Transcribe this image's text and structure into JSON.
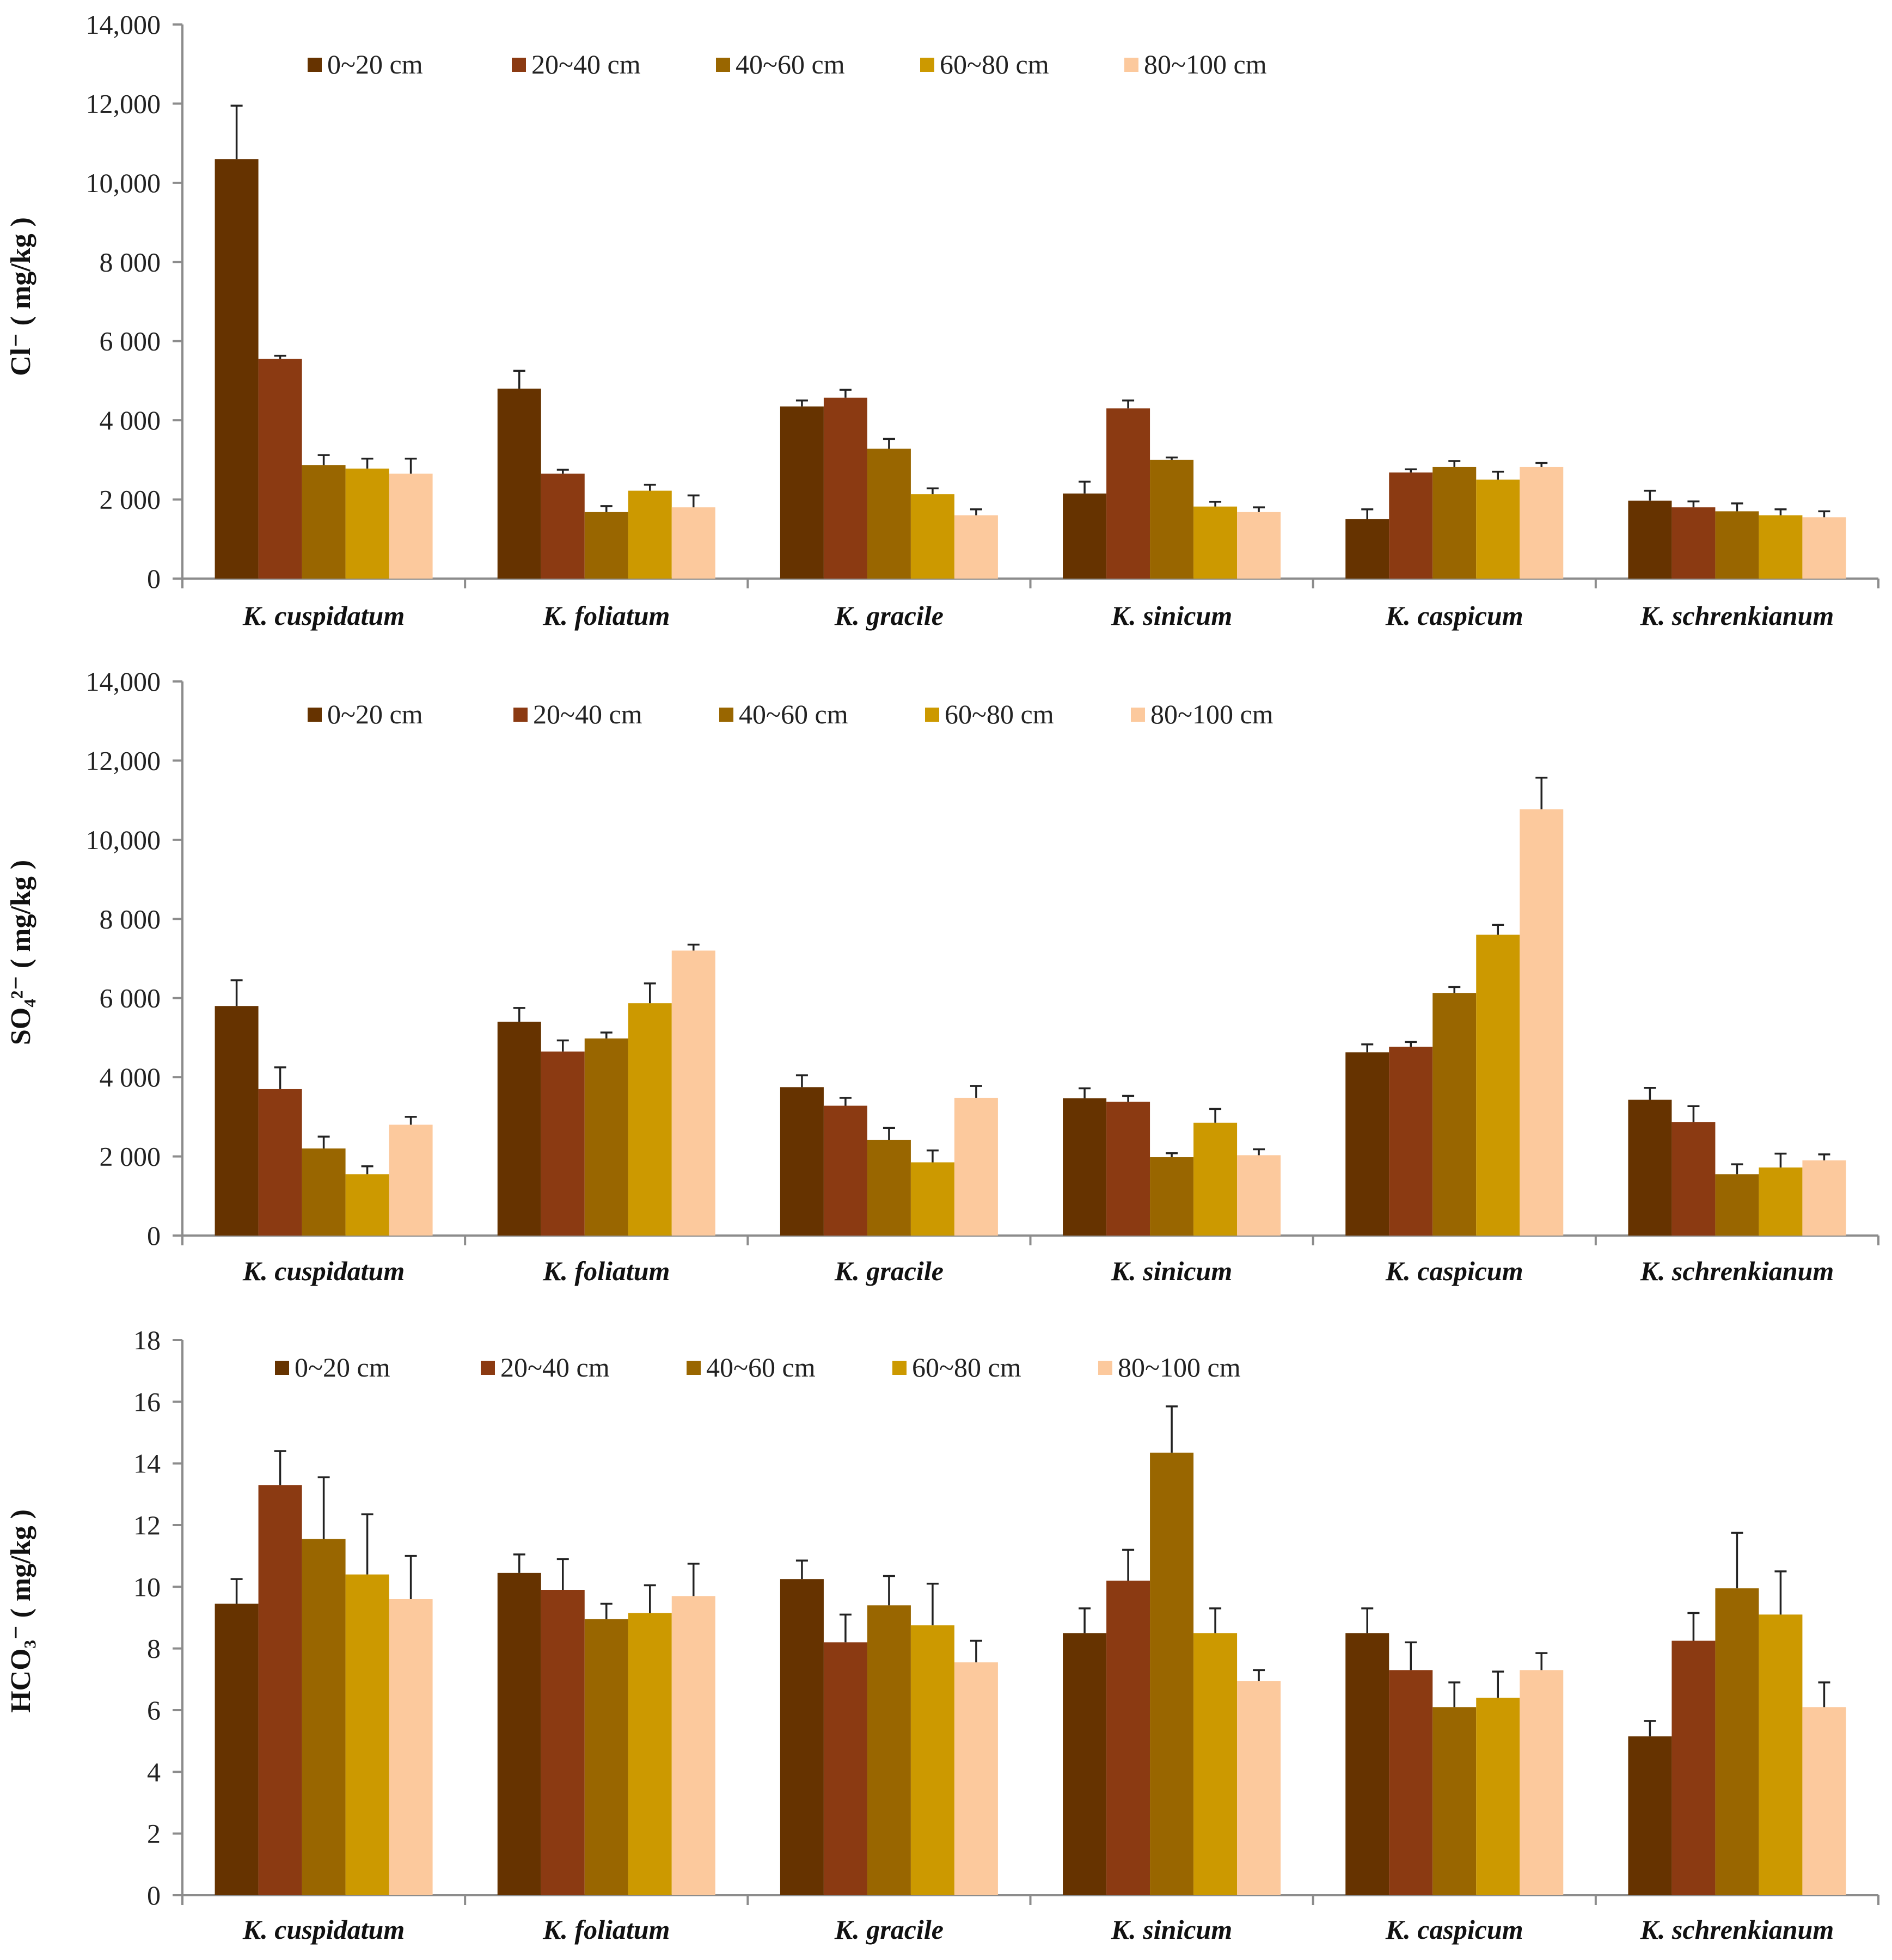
{
  "colors": {
    "0~20 cm": "#663300",
    "20~40 cm": "#8b3a12",
    "40~60 cm": "#996600",
    "60~80 cm": "#cc9900",
    "80~100 cm": "#fcc99d",
    "axis": "#8c8c8c",
    "error_bar": "#222222"
  },
  "chart_data": [
    {
      "type": "bar",
      "id": "chloride",
      "ylabel": "Cl⁻ ( mg/kg )",
      "ylim": [
        0,
        14000
      ],
      "yticks": [
        0,
        2000,
        4000,
        6000,
        8000,
        10000,
        12000,
        14000
      ],
      "ytick_labels": [
        "0",
        "2 000",
        "4 000",
        "6 000",
        "8 000",
        "10,000",
        "12,000",
        "14,000"
      ],
      "legend": [
        "0~20 cm",
        "20~40 cm",
        "40~60 cm",
        "60~80 cm",
        "80~100 cm"
      ],
      "categories": [
        "K. cuspidatum",
        "K. foliatum",
        "K. gracile",
        "K. sinicum",
        "K. caspicum",
        "K. schrenkianum"
      ],
      "series": [
        {
          "name": "0~20 cm",
          "values": [
            10600,
            4800,
            4350,
            2150,
            1500,
            1970
          ],
          "errors": [
            1350,
            450,
            150,
            300,
            250,
            250
          ]
        },
        {
          "name": "20~40 cm",
          "values": [
            5550,
            2650,
            4570,
            4300,
            2680,
            1800
          ],
          "errors": [
            80,
            100,
            200,
            200,
            80,
            150
          ]
        },
        {
          "name": "40~60 cm",
          "values": [
            2870,
            1680,
            3280,
            3000,
            2820,
            1700
          ],
          "errors": [
            250,
            150,
            250,
            60,
            150,
            200
          ]
        },
        {
          "name": "60~80 cm",
          "values": [
            2780,
            2220,
            2130,
            1820,
            2500,
            1600
          ],
          "errors": [
            250,
            150,
            150,
            120,
            200,
            150
          ]
        },
        {
          "name": "80~100 cm",
          "values": [
            2650,
            1800,
            1600,
            1680,
            2820,
            1550
          ],
          "errors": [
            380,
            300,
            150,
            120,
            100,
            150
          ]
        }
      ]
    },
    {
      "type": "bar",
      "id": "sulfate",
      "ylabel": "SO₄²⁻ ( mg/kg )",
      "ylim": [
        0,
        14000
      ],
      "yticks": [
        0,
        2000,
        4000,
        6000,
        8000,
        10000,
        12000,
        14000
      ],
      "ytick_labels": [
        "0",
        "2 000",
        "4 000",
        "6 000",
        "8 000",
        "10,000",
        "12,000",
        "14,000"
      ],
      "legend": [
        "0~20 cm",
        "20~40 cm",
        "40~60 cm",
        "60~80 cm",
        "80~100 cm"
      ],
      "categories": [
        "K. cuspidatum",
        "K. foliatum",
        "K. gracile",
        "K. sinicum",
        "K. caspicum",
        "K. schrenkianum"
      ],
      "series": [
        {
          "name": "0~20 cm",
          "values": [
            5800,
            5400,
            3750,
            3470,
            4630,
            3430
          ],
          "errors": [
            650,
            350,
            300,
            250,
            200,
            300
          ]
        },
        {
          "name": "20~40 cm",
          "values": [
            3700,
            4650,
            3280,
            3380,
            4770,
            2870
          ],
          "errors": [
            550,
            280,
            200,
            150,
            120,
            400
          ]
        },
        {
          "name": "40~60 cm",
          "values": [
            2200,
            4980,
            2420,
            1980,
            6130,
            1550
          ],
          "errors": [
            300,
            150,
            300,
            100,
            150,
            250
          ]
        },
        {
          "name": "60~80 cm",
          "values": [
            1550,
            5870,
            1850,
            2850,
            7600,
            1720
          ],
          "errors": [
            200,
            500,
            300,
            350,
            250,
            350
          ]
        },
        {
          "name": "80~100 cm",
          "values": [
            2800,
            7200,
            3480,
            2030,
            10770,
            1900
          ],
          "errors": [
            200,
            150,
            300,
            150,
            800,
            150
          ]
        }
      ]
    },
    {
      "type": "bar",
      "id": "bicarbonate",
      "ylabel": "HCO₃⁻ ( mg/kg )",
      "ylim": [
        0,
        18
      ],
      "yticks": [
        0,
        2,
        4,
        6,
        8,
        10,
        12,
        14,
        16,
        18
      ],
      "ytick_labels": [
        "0",
        "2",
        "4",
        "6",
        "8",
        "10",
        "12",
        "14",
        "16",
        "18"
      ],
      "legend": [
        "0~20 cm",
        "20~40 cm",
        "40~60 cm",
        "60~80 cm",
        "80~100 cm"
      ],
      "categories": [
        "K. cuspidatum",
        "K. foliatum",
        "K. gracile",
        "K. sinicum",
        "K. caspicum",
        "K. schrenkianum"
      ],
      "series": [
        {
          "name": "0~20 cm",
          "values": [
            9.45,
            10.45,
            10.25,
            8.5,
            8.5,
            5.15
          ],
          "errors": [
            0.8,
            0.6,
            0.6,
            0.8,
            0.8,
            0.5
          ]
        },
        {
          "name": "20~40 cm",
          "values": [
            13.3,
            9.9,
            8.2,
            10.2,
            7.3,
            8.25
          ],
          "errors": [
            1.1,
            1.0,
            0.9,
            1.0,
            0.9,
            0.9
          ]
        },
        {
          "name": "40~60 cm",
          "values": [
            11.55,
            8.95,
            9.4,
            14.35,
            6.1,
            9.95
          ],
          "errors": [
            2.0,
            0.5,
            0.95,
            1.5,
            0.8,
            1.8
          ]
        },
        {
          "name": "60~80 cm",
          "values": [
            10.4,
            9.15,
            8.75,
            8.5,
            6.4,
            9.1
          ],
          "errors": [
            1.95,
            0.9,
            1.35,
            0.8,
            0.85,
            1.4
          ]
        },
        {
          "name": "80~100 cm",
          "values": [
            9.6,
            9.7,
            7.55,
            6.95,
            7.3,
            6.1
          ],
          "errors": [
            1.4,
            1.05,
            0.7,
            0.35,
            0.55,
            0.8
          ]
        }
      ]
    }
  ]
}
